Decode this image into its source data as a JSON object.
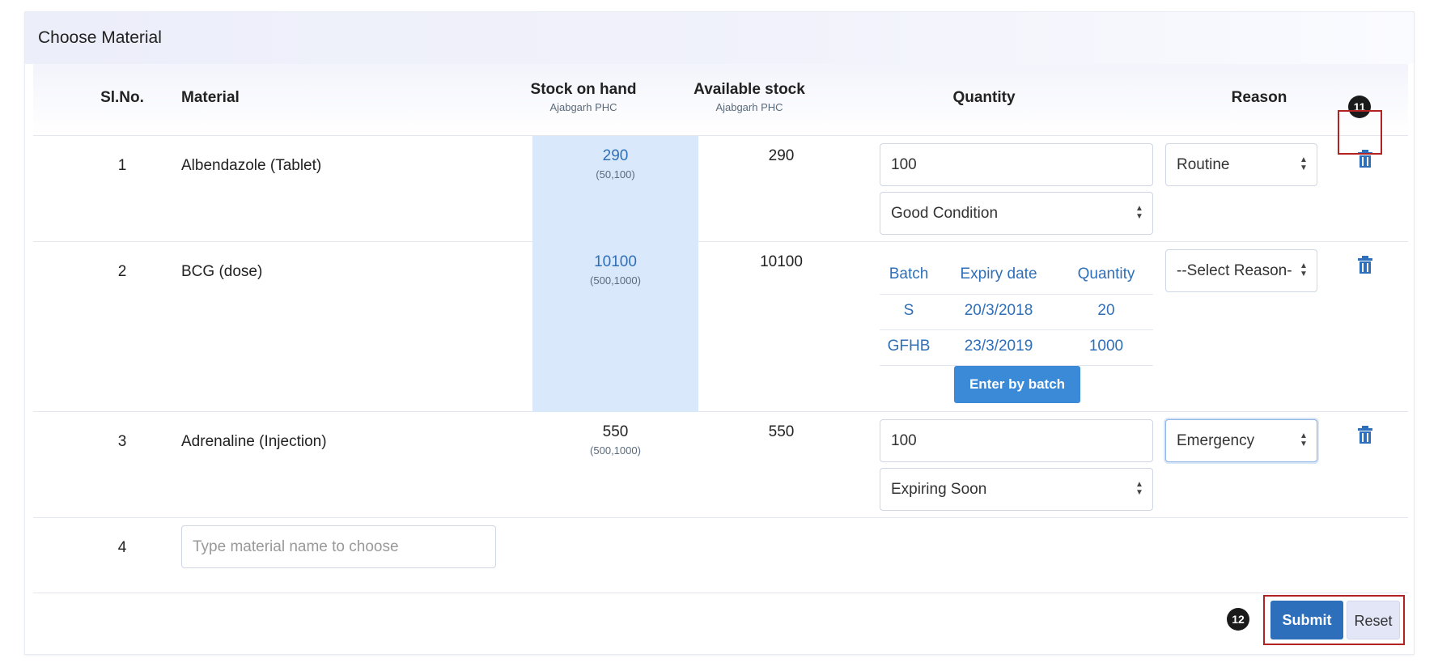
{
  "panel": {
    "title": "Choose Material"
  },
  "table": {
    "headers": {
      "slno": "Sl.No.",
      "material": "Material",
      "stock_on_hand": "Stock on hand",
      "stock_on_hand_sub": "Ajabgarh PHC",
      "available_stock": "Available stock",
      "available_stock_sub": "Ajabgarh PHC",
      "quantity": "Quantity",
      "reason": "Reason"
    },
    "rows": [
      {
        "slno": "1",
        "material": "Albendazole (Tablet)",
        "stock_on_hand": "290",
        "stock_range": "(50,100)",
        "available_stock": "290",
        "quantity_value": "100",
        "condition": "Good Condition",
        "reason": "Routine"
      },
      {
        "slno": "2",
        "material": "BCG (dose)",
        "stock_on_hand": "10100",
        "stock_range": "(500,1000)",
        "available_stock": "10100",
        "batch_headers": [
          "Batch",
          "Expiry date",
          "Quantity"
        ],
        "batches": [
          {
            "batch": "S",
            "expiry": "20/3/2018",
            "quantity": "20"
          },
          {
            "batch": "GFHB",
            "expiry": "23/3/2019",
            "quantity": "1000"
          }
        ],
        "enter_by_batch_label": "Enter by batch",
        "reason": "--Select Reason-"
      },
      {
        "slno": "3",
        "material": "Adrenaline (Injection)",
        "stock_on_hand": "550",
        "stock_range": "(500,1000)",
        "available_stock": "550",
        "quantity_value": "100",
        "condition": "Expiring Soon",
        "reason": "Emergency"
      },
      {
        "slno": "4",
        "material_placeholder": "Type material name to choose"
      }
    ]
  },
  "annotations": {
    "badge_delete": "11",
    "badge_submit": "12"
  },
  "actions": {
    "submit_label": "Submit",
    "reset_label": "Reset"
  },
  "colors": {
    "accent": "#2d6fbb",
    "stock_highlight": "#d9e9fb",
    "annotation_border": "#b32222"
  }
}
